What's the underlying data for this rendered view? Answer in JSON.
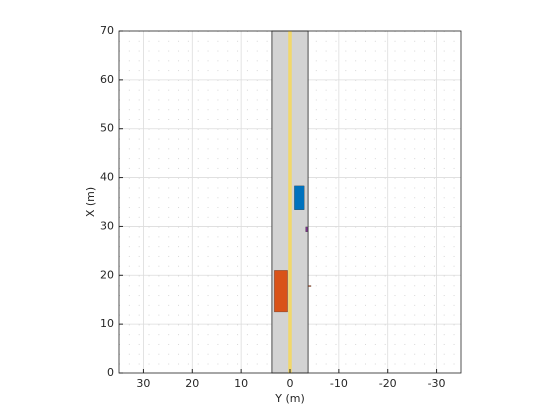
{
  "chart_data": {
    "type": "scenario",
    "xlabel": "Y (m)",
    "ylabel": "X (m)",
    "xlim": [
      35,
      -35
    ],
    "xticks": [
      30,
      20,
      10,
      0,
      -10,
      -20,
      -30
    ],
    "ylim": [
      0,
      70
    ],
    "yticks": [
      0,
      10,
      20,
      30,
      40,
      50,
      60,
      70
    ],
    "grid": true,
    "minor_grid": true,
    "road": {
      "y": [
        3.7,
        -3.7
      ],
      "x": [
        0,
        70
      ],
      "color": "#d3d3d3",
      "lane_marking_y": 0,
      "lane_color": "#f2d86b"
    },
    "actors": [
      {
        "y": [
          -0.9,
          -2.9
        ],
        "x": [
          33.4,
          38.3
        ],
        "color": "#0072bd"
      },
      {
        "y": [
          3.2,
          0.5
        ],
        "x": [
          12.5,
          21.0
        ],
        "color": "#d95319"
      },
      {
        "y": [
          -3.2,
          -3.6
        ],
        "x": [
          28.9,
          29.9
        ],
        "color": "#7e2f8e"
      },
      {
        "y": [
          -3.7,
          -4.3
        ],
        "x": [
          17.7,
          17.9
        ],
        "color": "#d95319"
      }
    ]
  }
}
